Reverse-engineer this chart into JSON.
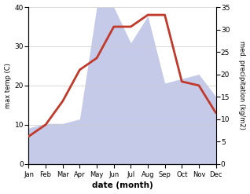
{
  "months": [
    "Jan",
    "Feb",
    "Mar",
    "Apr",
    "May",
    "Jun",
    "Jul",
    "Aug",
    "Sep",
    "Oct",
    "Nov",
    "Dec"
  ],
  "temp": [
    7,
    10,
    16,
    24,
    27,
    35,
    35,
    38,
    38,
    21,
    20,
    13
  ],
  "precip": [
    8,
    9,
    9,
    10,
    35,
    35,
    27,
    33,
    18,
    19,
    20,
    15
  ],
  "temp_color": "#c0392b",
  "precip_fill_color": "#c5cae9",
  "temp_ylim": [
    0,
    40
  ],
  "precip_ylim": [
    0,
    35
  ],
  "temp_yticks": [
    0,
    10,
    20,
    30,
    40
  ],
  "precip_yticks": [
    0,
    5,
    10,
    15,
    20,
    25,
    30,
    35
  ],
  "xlabel": "date (month)",
  "ylabel_left": "max temp (C)",
  "ylabel_right": "med. precipitation (kg/m2)",
  "bg_color": "#ffffff",
  "line_width": 2.0
}
